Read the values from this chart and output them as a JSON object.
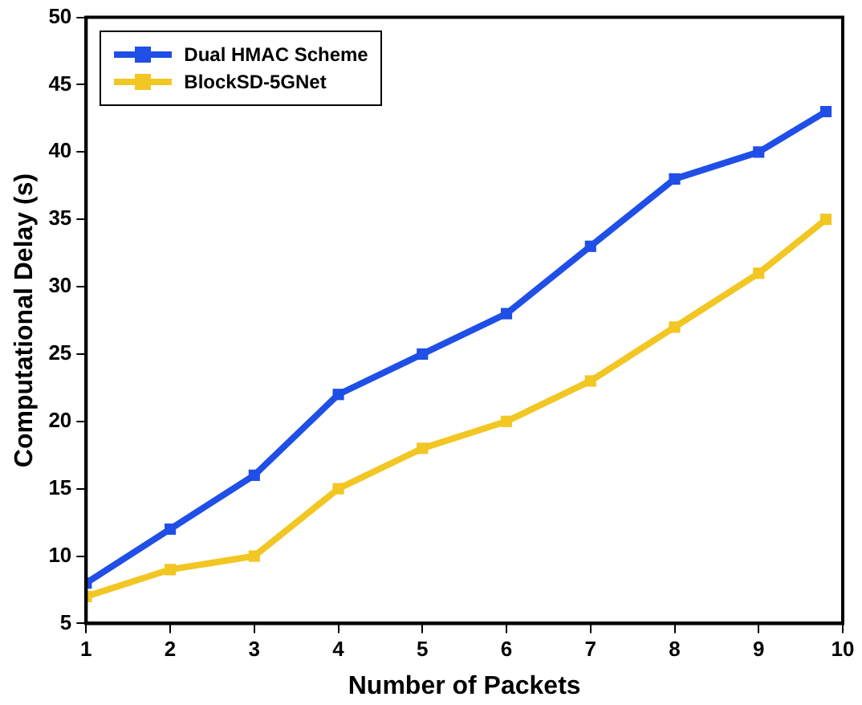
{
  "chart_data": {
    "type": "line",
    "xlabel": "Number of Packets",
    "ylabel": "Computational Delay (s)",
    "x": [
      1,
      2,
      3,
      4,
      5,
      6,
      7,
      8,
      9,
      9.8
    ],
    "xlim": [
      1,
      10
    ],
    "xticks": [
      1,
      2,
      3,
      4,
      5,
      6,
      7,
      8,
      9,
      10
    ],
    "ylim": [
      5,
      50
    ],
    "yticks": [
      5,
      10,
      15,
      20,
      25,
      30,
      35,
      40,
      45,
      50
    ],
    "series": [
      {
        "name": "Dual HMAC Scheme",
        "color": "#1f4fe6",
        "values": [
          8,
          12,
          16,
          22,
          25,
          28,
          33,
          38,
          40,
          43
        ]
      },
      {
        "name": "BlockSD-5GNet",
        "color": "#f2c623",
        "values": [
          7,
          9,
          10,
          15,
          18,
          20,
          23,
          27,
          31,
          35
        ]
      }
    ],
    "grid": false,
    "legend": "top left",
    "marker": "square",
    "line_style": "solid"
  }
}
